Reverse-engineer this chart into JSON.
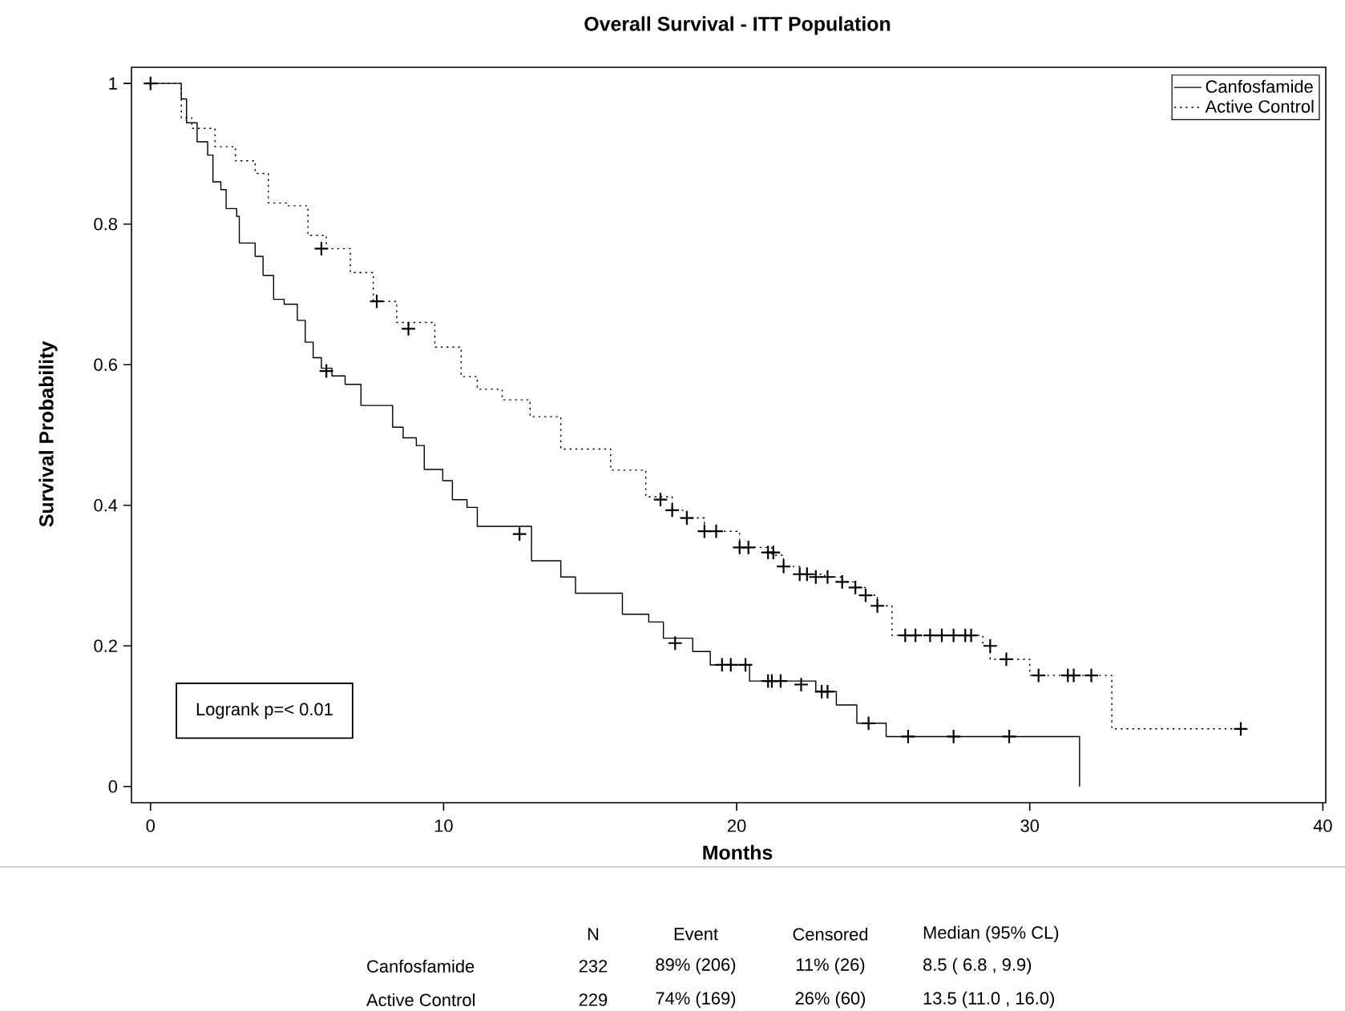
{
  "chart_data": {
    "type": "step",
    "title": "Overall Survival   -   ITT Population",
    "xlabel": "Months",
    "ylabel": "Survival Probability",
    "xlim": [
      -0.65,
      40.1
    ],
    "ylim": [
      -0.023,
      1.023
    ],
    "xticks": [
      0,
      10,
      20,
      30,
      40
    ],
    "yticks": [
      0,
      0.2,
      0.4,
      0.6,
      0.8,
      1
    ],
    "legend": "top right",
    "series": [
      {
        "name": "Canfosfamide",
        "color": "#000000",
        "line_style": "solid",
        "x": [
          0,
          1.05,
          1.23,
          1.59,
          1.95,
          2.13,
          2.4,
          2.58,
          2.94,
          3.03,
          3.57,
          3.84,
          4.2,
          4.56,
          5.01,
          5.28,
          5.55,
          5.83,
          6.19,
          6.64,
          7.18,
          8.26,
          8.62,
          9.07,
          9.34,
          9.97,
          10.3,
          10.8,
          11.15,
          13.0,
          14.0,
          14.5,
          16.1,
          17.0,
          17.5,
          18.5,
          19.1,
          20.44,
          22.7,
          23.4,
          24.1,
          25.1,
          31.7
        ],
        "values": [
          1.0,
          0.978,
          0.944,
          0.917,
          0.898,
          0.86,
          0.849,
          0.822,
          0.811,
          0.773,
          0.754,
          0.727,
          0.693,
          0.686,
          0.663,
          0.632,
          0.61,
          0.595,
          0.584,
          0.572,
          0.542,
          0.511,
          0.496,
          0.485,
          0.451,
          0.435,
          0.408,
          0.397,
          0.37,
          0.321,
          0.298,
          0.275,
          0.245,
          0.234,
          0.211,
          0.192,
          0.173,
          0.15,
          0.135,
          0.116,
          0.09,
          0.071,
          0
        ]
      },
      {
        "name": "Active Control",
        "color": "#000000",
        "line_style": "dotted",
        "x": [
          0,
          1.05,
          1.41,
          2.2,
          2.9,
          3.57,
          4.02,
          4.65,
          5.37,
          6.0,
          6.82,
          7.6,
          8.4,
          9.7,
          10.6,
          11.15,
          12.0,
          12.95,
          14.0,
          15.7,
          16.9,
          17.8,
          18.3,
          18.9,
          20.1,
          21.2,
          21.6,
          22.15,
          23.0,
          23.6,
          24.05,
          24.4,
          24.8,
          25.3,
          28.4,
          28.65,
          30.0,
          32.8,
          37.2
        ],
        "values": [
          1.0,
          0.951,
          0.936,
          0.91,
          0.89,
          0.872,
          0.83,
          0.826,
          0.784,
          0.765,
          0.731,
          0.69,
          0.66,
          0.625,
          0.583,
          0.565,
          0.55,
          0.526,
          0.48,
          0.45,
          0.412,
          0.393,
          0.382,
          0.363,
          0.34,
          0.329,
          0.313,
          0.302,
          0.298,
          0.291,
          0.283,
          0.272,
          0.257,
          0.215,
          0.2,
          0.181,
          0.158,
          0.082,
          0.082
        ]
      },
      {
        "type": "scatter",
        "marker": "cross",
        "color": "#000000",
        "x": [
          0,
          6.0,
          12.59,
          17.9,
          19.5,
          19.8,
          20.3,
          21.07,
          21.2,
          21.5,
          22.2,
          22.9,
          23.1,
          24.5,
          25.85,
          27.4,
          29.3
        ],
        "values": [
          1.0,
          0.591,
          0.359,
          0.204,
          0.173,
          0.173,
          0.173,
          0.15,
          0.15,
          0.15,
          0.145,
          0.135,
          0.135,
          0.09,
          0.071,
          0.071,
          0.071
        ]
      },
      {
        "type": "scatter",
        "marker": "cross",
        "color": "#000000",
        "x": [
          5.83,
          7.72,
          8.8,
          17.4,
          17.8,
          18.3,
          18.9,
          19.3,
          20.1,
          20.4,
          21.07,
          21.25,
          21.6,
          22.15,
          22.4,
          22.7,
          23.1,
          23.6,
          24.05,
          24.4,
          24.8,
          25.75,
          26.1,
          26.6,
          27.0,
          27.4,
          27.8,
          28.0,
          28.65,
          29.2,
          30.3,
          31.3,
          31.5,
          32.1,
          37.2
        ],
        "values": [
          0.765,
          0.69,
          0.651,
          0.408,
          0.393,
          0.382,
          0.363,
          0.363,
          0.34,
          0.34,
          0.333,
          0.333,
          0.313,
          0.302,
          0.302,
          0.298,
          0.298,
          0.291,
          0.283,
          0.272,
          0.257,
          0.215,
          0.215,
          0.215,
          0.215,
          0.215,
          0.215,
          0.215,
          0.2,
          0.181,
          0.158,
          0.158,
          0.158,
          0.158,
          0.082
        ]
      }
    ],
    "annotations": [
      "Logrank p=< 0.01",
      "N",
      "Event",
      "Censored",
      "Median (95% CL)",
      "Canfosfamide",
      "232",
      "89% (206)",
      "11% (26)",
      "8.5  ( 6.8  ,   9.9)",
      "Active Control",
      "229",
      "74% (169)",
      "26% (60)",
      "13.5  (11.0  ,  16.0)"
    ]
  }
}
